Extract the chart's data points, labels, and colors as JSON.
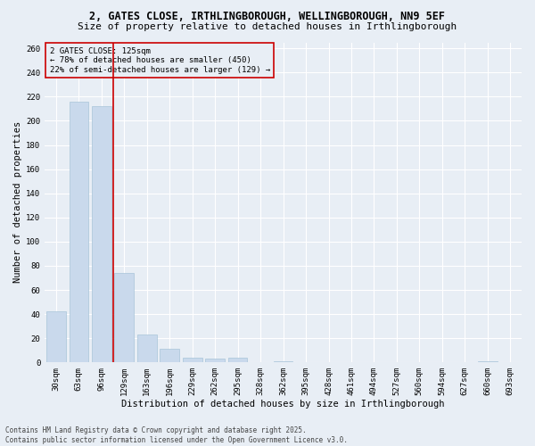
{
  "title_line1": "2, GATES CLOSE, IRTHLINGBOROUGH, WELLINGBOROUGH, NN9 5EF",
  "title_line2": "Size of property relative to detached houses in Irthlingborough",
  "xlabel": "Distribution of detached houses by size in Irthlingborough",
  "ylabel": "Number of detached properties",
  "categories": [
    "30sqm",
    "63sqm",
    "96sqm",
    "129sqm",
    "163sqm",
    "196sqm",
    "229sqm",
    "262sqm",
    "295sqm",
    "328sqm",
    "362sqm",
    "395sqm",
    "428sqm",
    "461sqm",
    "494sqm",
    "527sqm",
    "560sqm",
    "594sqm",
    "627sqm",
    "660sqm",
    "693sqm"
  ],
  "values": [
    42,
    216,
    212,
    74,
    23,
    11,
    4,
    3,
    4,
    0,
    1,
    0,
    0,
    0,
    0,
    0,
    0,
    0,
    0,
    1,
    0
  ],
  "bar_color": "#c9d9ec",
  "bar_edgecolor": "#a8c4d8",
  "vline_x": 2.5,
  "vline_color": "#cc0000",
  "annotation_title": "2 GATES CLOSE: 125sqm",
  "annotation_line2": "← 78% of detached houses are smaller (450)",
  "annotation_line3": "22% of semi-detached houses are larger (129) →",
  "annotation_box_edgecolor": "#cc0000",
  "ylim": [
    0,
    265
  ],
  "yticks": [
    0,
    20,
    40,
    60,
    80,
    100,
    120,
    140,
    160,
    180,
    200,
    220,
    240,
    260
  ],
  "footer_line1": "Contains HM Land Registry data © Crown copyright and database right 2025.",
  "footer_line2": "Contains public sector information licensed under the Open Government Licence v3.0.",
  "bg_color": "#e8eef5",
  "grid_color": "#ffffff",
  "title1_fontsize": 8.5,
  "title2_fontsize": 8.0,
  "xlabel_fontsize": 7.5,
  "ylabel_fontsize": 7.5,
  "tick_fontsize": 6.5,
  "ann_fontsize": 6.5,
  "footer_fontsize": 5.5
}
